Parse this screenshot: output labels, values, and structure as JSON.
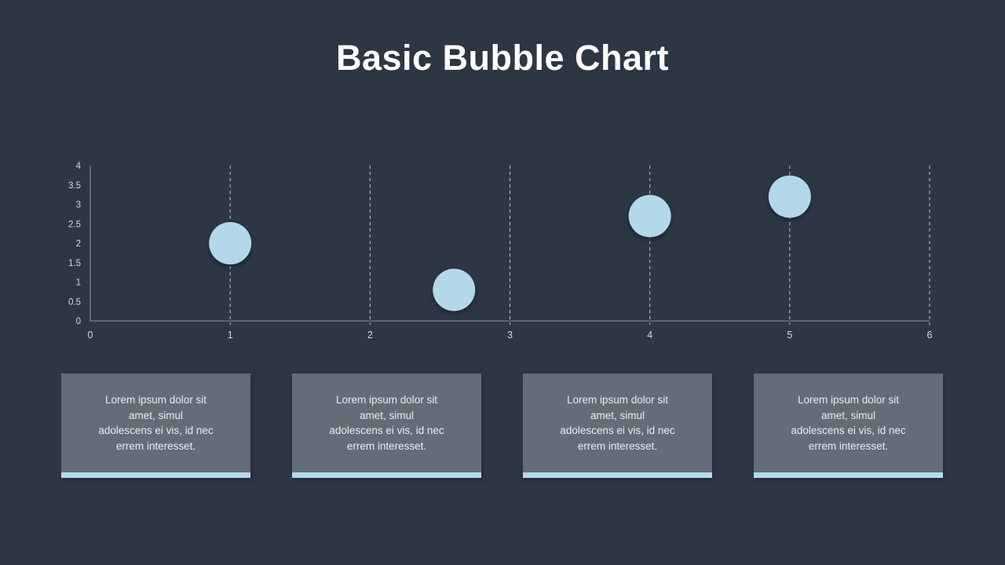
{
  "slide": {
    "title": "Basic Bubble Chart"
  },
  "colors": {
    "background": "#2d3643",
    "bubble": "#b2d8ea",
    "card_background": "#646c77",
    "card_accent": "#b4daec",
    "card_text": "#eceef0",
    "axis_line": "#8f959c",
    "gridline": "#c3cad2",
    "tick_label": "#d9dce0",
    "title_text": "#fdfdfe"
  },
  "chart_data": {
    "type": "scatter",
    "variant": "bubble",
    "title": "Basic Bubble Chart",
    "xlabel": "",
    "ylabel": "",
    "xlim": [
      0,
      6
    ],
    "ylim": [
      0,
      4
    ],
    "x_ticks": [
      "0",
      "1",
      "2",
      "3",
      "4",
      "5",
      "6"
    ],
    "y_ticks": [
      "0",
      "0.5",
      "1",
      "1.5",
      "2",
      "2.5",
      "3",
      "3.5",
      "4"
    ],
    "grid": "vertical-dashed",
    "legend": "none",
    "points": [
      {
        "x": 1,
        "y": 2,
        "r": 27
      },
      {
        "x": 2.6,
        "y": 0.8,
        "r": 27
      },
      {
        "x": 4,
        "y": 2.7,
        "r": 27
      },
      {
        "x": 5,
        "y": 3.2,
        "r": 27
      }
    ]
  },
  "cards": [
    {
      "text": "Lorem ipsum dolor sit\namet, simul\nadolescens ei vis, id nec\nerrem interesset."
    },
    {
      "text": "Lorem ipsum dolor sit\namet, simul\nadolescens ei vis, id nec\nerrem interesset."
    },
    {
      "text": "Lorem ipsum dolor sit\namet, simul\nadolescens ei vis, id nec\nerrem interesset."
    },
    {
      "text": "Lorem ipsum dolor sit\namet, simul\nadolescens ei vis, id nec\nerrem interesset."
    }
  ]
}
